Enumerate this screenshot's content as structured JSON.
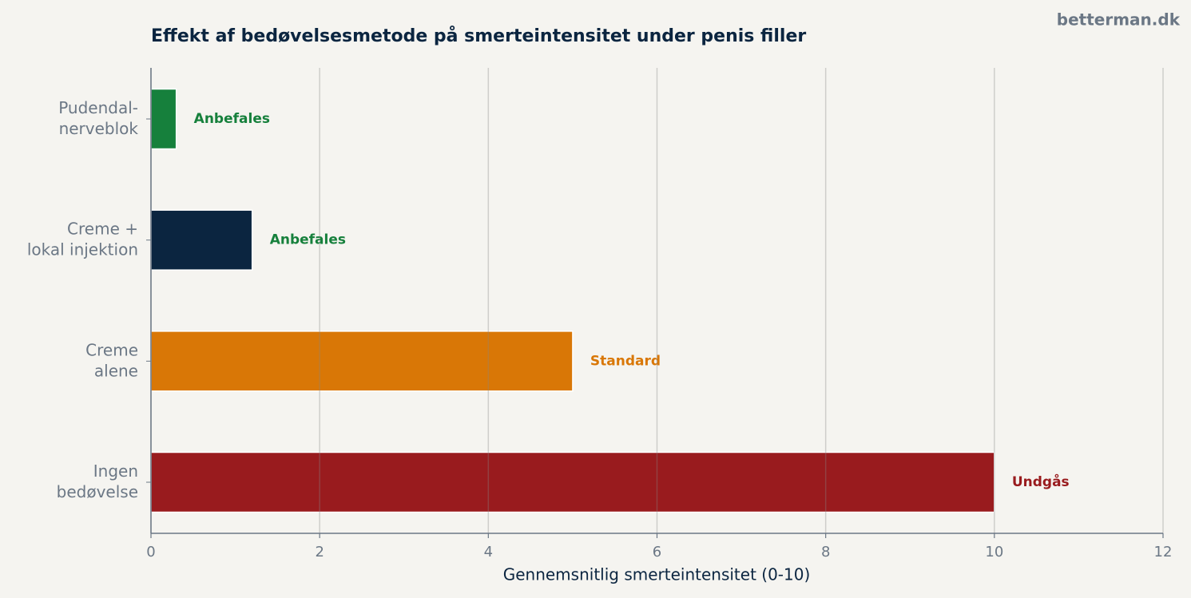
{
  "chart_data": {
    "type": "barh",
    "title": "Effekt af bedøvelsesmetode på smerteintensitet under penis filler",
    "watermark": "betterman.dk",
    "xlabel": "Gennemsnitlig smerteintensitet (0-10)",
    "categories": [
      "Pudendal-\nnerveblok",
      "Creme +\nlokal injektion",
      "Creme\nalene",
      "Ingen\nbedøvelse"
    ],
    "values": [
      0.3,
      1.2,
      5,
      10
    ],
    "colors": [
      "#16803c",
      "#0b2540",
      "#d97706",
      "#991b1e"
    ],
    "annotations": [
      "Anbefales",
      "Anbefales",
      "Standard",
      "Undgås"
    ],
    "annotation_colors": [
      "#16803c",
      "#16803c",
      "#d97706",
      "#991b1e"
    ],
    "xlim": [
      0,
      12
    ],
    "xticks": [
      0,
      2,
      4,
      6,
      8,
      10,
      12
    ],
    "grid": true
  }
}
